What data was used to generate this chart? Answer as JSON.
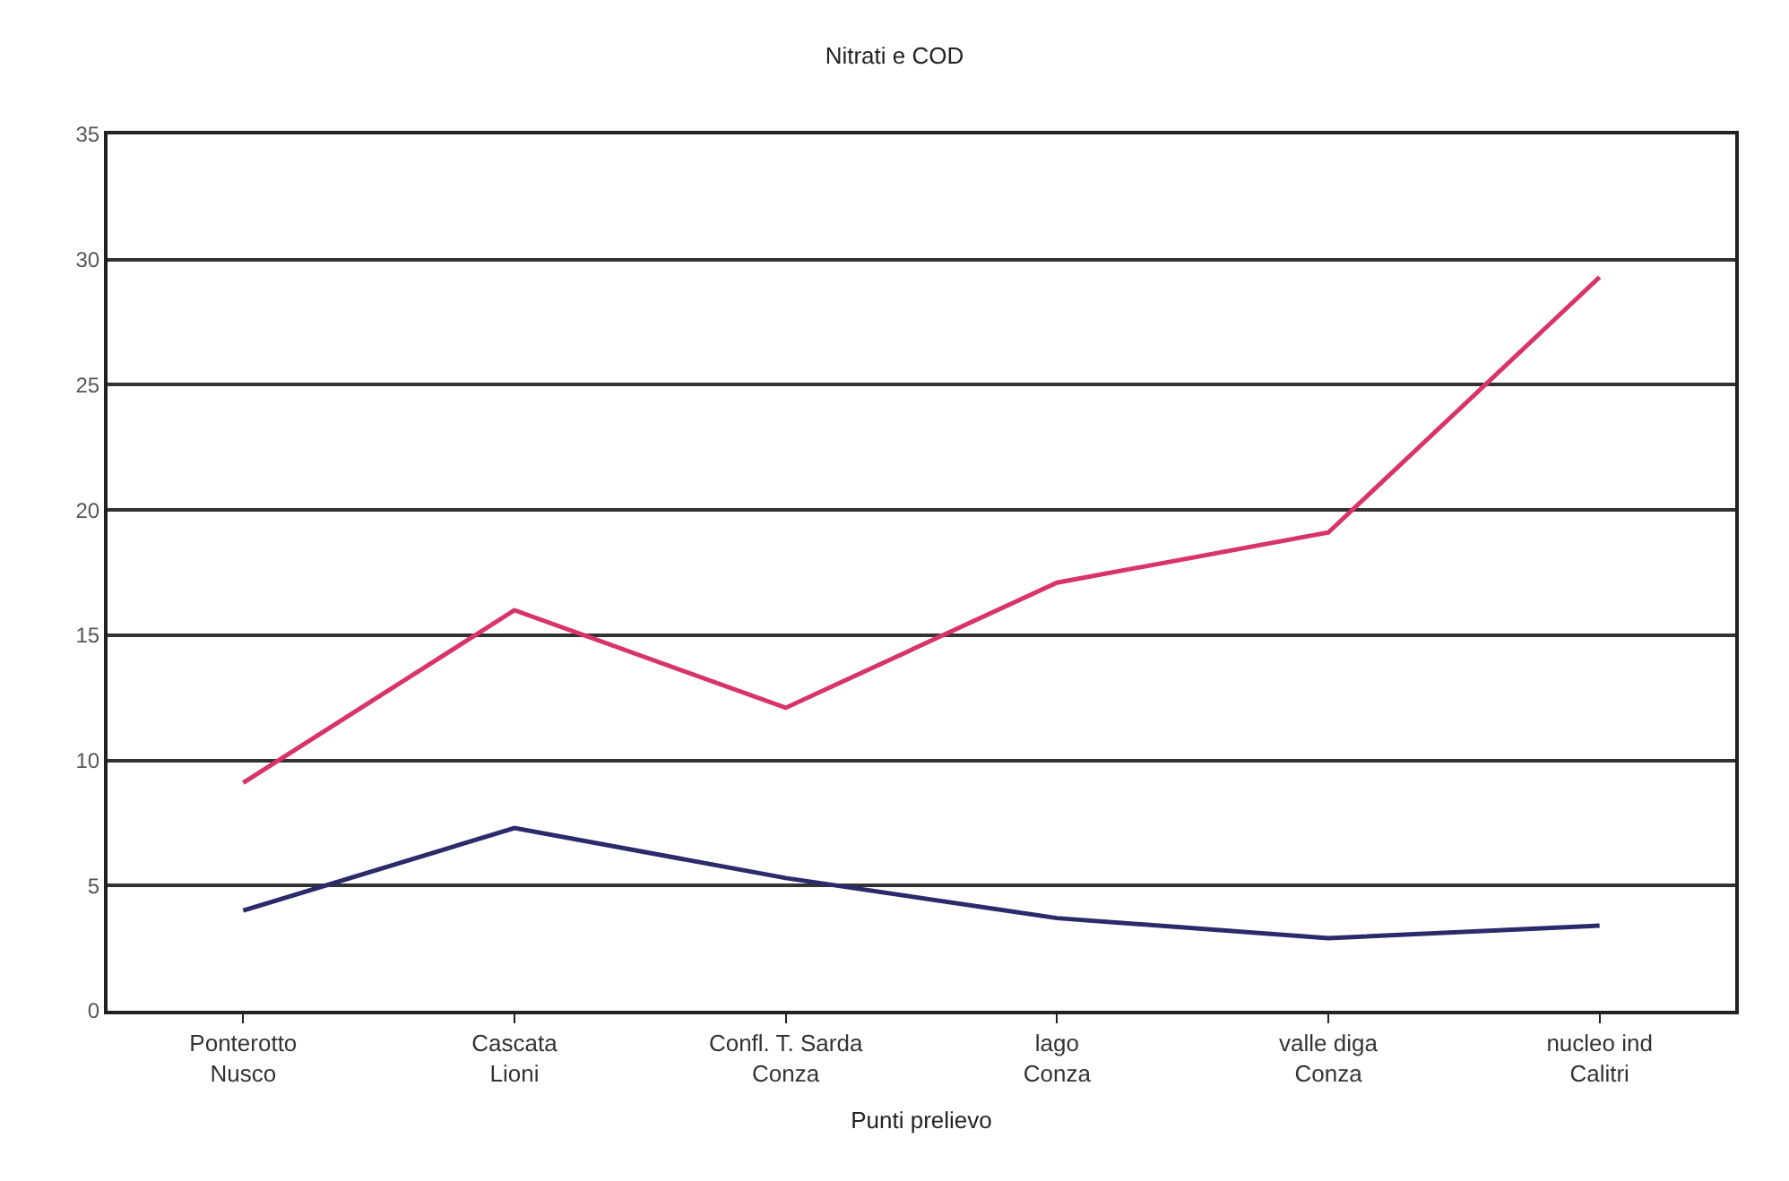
{
  "chart_data": {
    "type": "line",
    "title": "Nitrati e COD",
    "xlabel": "Punti prelievo",
    "categories": [
      "Ponterotto\nNusco",
      "Cascata\nLioni",
      "Confl. T. Sarda\nConza",
      "lago\nConza",
      "valle diga\nConza",
      "nucleo ind\nCalitri"
    ],
    "series": [
      {
        "color": "#d9336b",
        "values": [
          9.1,
          16.0,
          12.1,
          17.1,
          19.1,
          29.3
        ]
      },
      {
        "color": "#2b2a6b",
        "values": [
          4.0,
          7.3,
          5.3,
          3.7,
          2.9,
          3.4
        ]
      }
    ],
    "ylim": [
      0,
      35
    ],
    "yticks": [
      0,
      5,
      10,
      15,
      20,
      25,
      30,
      35
    ],
    "grid": "y",
    "marker": "none",
    "line_style": "solid"
  }
}
